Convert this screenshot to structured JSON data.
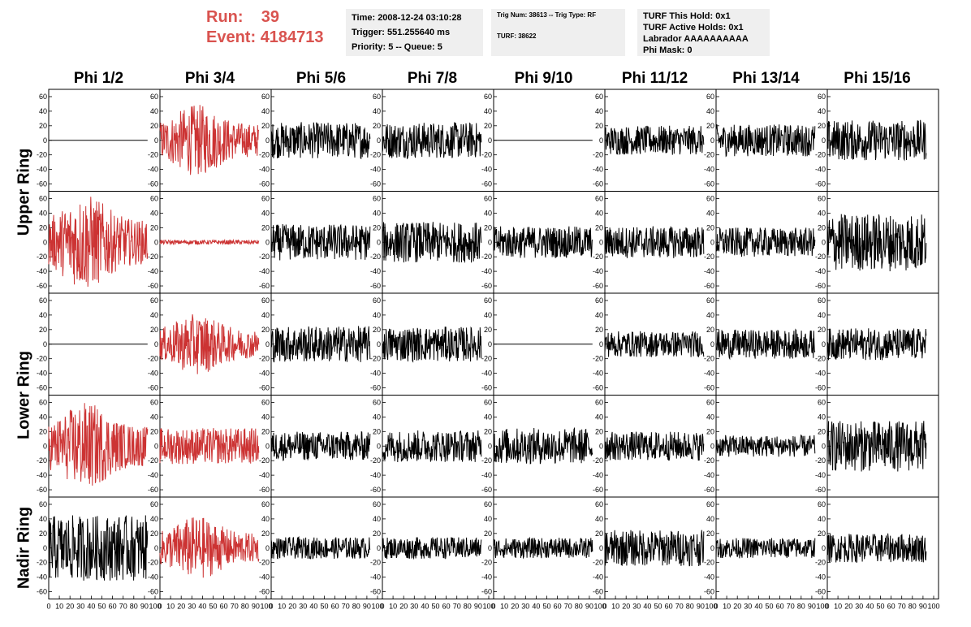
{
  "header": {
    "run_label": "Run:",
    "run_value": "39",
    "event_label": "Event:",
    "event_value": "4184713",
    "time": "Time: 2008-12-24 03:10:28",
    "trigger": "Trigger: 551.255640 ms",
    "priority": "Priority: 5 -- Queue: 5",
    "trig_num": "Trig Num: 38613 -- Trig Type: RF",
    "turf": "TURF: 38622",
    "turf_hold": "TURF This Hold: 0x1",
    "turf_active": "TURF Active Holds: 0x1",
    "labrador": "Labrador AAAAAAAAAA",
    "phi_mask": "Phi Mask: 0"
  },
  "columns": [
    "Phi 1/2",
    "Phi 3/4",
    "Phi 5/6",
    "Phi 7/8",
    "Phi 9/10",
    "Phi 11/12",
    "Phi 13/14",
    "Phi 15/16"
  ],
  "row_labels": [
    "Upper Ring",
    "Lower Ring",
    "Nadir Ring"
  ],
  "colors": {
    "highlight": "#cc3333",
    "trace": "#000000",
    "header_red": "#d9534f",
    "info_bg": "#efefef"
  },
  "chart_data": {
    "type": "line",
    "ylim": [
      -70,
      70
    ],
    "xlim": [
      0,
      100
    ],
    "y_ticks": [
      -60,
      -40,
      -20,
      0,
      20,
      40,
      60
    ],
    "y_tick_labels": [
      "-60",
      "-40",
      "-20",
      "0",
      "20",
      "40",
      "60"
    ],
    "x_ticks": [
      0,
      10,
      20,
      30,
      40,
      50,
      60,
      70,
      80,
      90,
      100
    ],
    "x_tick_labels": [
      "0",
      "10",
      "20",
      "30",
      "40",
      "50",
      "60",
      "70",
      "80",
      "90",
      "100"
    ],
    "panels": [
      {
        "row": 0,
        "col": 0,
        "amplitude": 0,
        "highlight": false
      },
      {
        "row": 0,
        "col": 1,
        "amplitude": 45,
        "highlight": true
      },
      {
        "row": 0,
        "col": 2,
        "amplitude": 25,
        "highlight": false
      },
      {
        "row": 0,
        "col": 3,
        "amplitude": 25,
        "highlight": false
      },
      {
        "row": 0,
        "col": 4,
        "amplitude": 0,
        "highlight": false
      },
      {
        "row": 0,
        "col": 5,
        "amplitude": 20,
        "highlight": false
      },
      {
        "row": 0,
        "col": 6,
        "amplitude": 22,
        "highlight": false
      },
      {
        "row": 0,
        "col": 7,
        "amplitude": 28,
        "highlight": false
      },
      {
        "row": 1,
        "col": 0,
        "amplitude": 60,
        "highlight": true
      },
      {
        "row": 1,
        "col": 1,
        "amplitude": 3,
        "highlight": true
      },
      {
        "row": 1,
        "col": 2,
        "amplitude": 25,
        "highlight": false
      },
      {
        "row": 1,
        "col": 3,
        "amplitude": 28,
        "highlight": false
      },
      {
        "row": 1,
        "col": 4,
        "amplitude": 22,
        "highlight": false
      },
      {
        "row": 1,
        "col": 5,
        "amplitude": 22,
        "highlight": false
      },
      {
        "row": 1,
        "col": 6,
        "amplitude": 20,
        "highlight": false
      },
      {
        "row": 1,
        "col": 7,
        "amplitude": 40,
        "highlight": false
      },
      {
        "row": 2,
        "col": 0,
        "amplitude": 0,
        "highlight": false
      },
      {
        "row": 2,
        "col": 1,
        "amplitude": 38,
        "highlight": true
      },
      {
        "row": 2,
        "col": 2,
        "amplitude": 25,
        "highlight": false
      },
      {
        "row": 2,
        "col": 3,
        "amplitude": 24,
        "highlight": false
      },
      {
        "row": 2,
        "col": 4,
        "amplitude": 0,
        "highlight": false
      },
      {
        "row": 2,
        "col": 5,
        "amplitude": 18,
        "highlight": false
      },
      {
        "row": 2,
        "col": 6,
        "amplitude": 20,
        "highlight": false
      },
      {
        "row": 2,
        "col": 7,
        "amplitude": 22,
        "highlight": false
      },
      {
        "row": 3,
        "col": 0,
        "amplitude": 55,
        "highlight": true
      },
      {
        "row": 3,
        "col": 1,
        "amplitude": 25,
        "highlight": true
      },
      {
        "row": 3,
        "col": 2,
        "amplitude": 20,
        "highlight": false
      },
      {
        "row": 3,
        "col": 3,
        "amplitude": 22,
        "highlight": false
      },
      {
        "row": 3,
        "col": 4,
        "amplitude": 25,
        "highlight": false
      },
      {
        "row": 3,
        "col": 5,
        "amplitude": 20,
        "highlight": false
      },
      {
        "row": 3,
        "col": 6,
        "amplitude": 15,
        "highlight": false
      },
      {
        "row": 3,
        "col": 7,
        "amplitude": 35,
        "highlight": false
      },
      {
        "row": 4,
        "col": 0,
        "amplitude": 45,
        "highlight": false
      },
      {
        "row": 4,
        "col": 1,
        "amplitude": 40,
        "highlight": true
      },
      {
        "row": 4,
        "col": 2,
        "amplitude": 15,
        "highlight": false
      },
      {
        "row": 4,
        "col": 3,
        "amplitude": 15,
        "highlight": false
      },
      {
        "row": 4,
        "col": 4,
        "amplitude": 14,
        "highlight": false
      },
      {
        "row": 4,
        "col": 5,
        "amplitude": 25,
        "highlight": false
      },
      {
        "row": 4,
        "col": 6,
        "amplitude": 14,
        "highlight": false
      },
      {
        "row": 4,
        "col": 7,
        "amplitude": 20,
        "highlight": false
      }
    ]
  }
}
